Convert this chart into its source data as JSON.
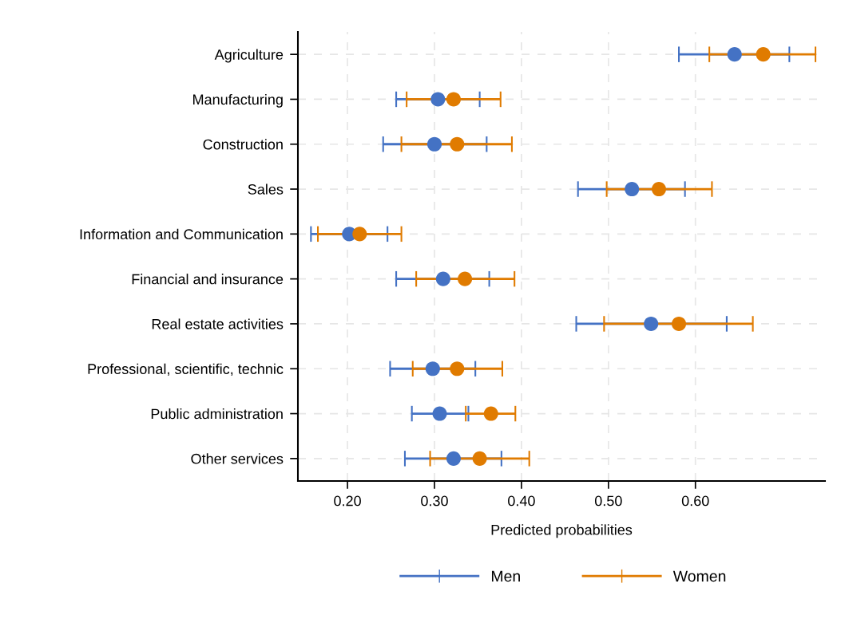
{
  "chart_data": {
    "type": "scatter",
    "orientation": "horizontal",
    "xlabel": "Predicted probabilities",
    "categories": [
      "Agriculture",
      "Manufacturing",
      "Construction",
      "Sales",
      "Information and Communication",
      "Financial and insurance",
      "Real estate activities",
      "Professional, scientific, technic",
      "Public administration",
      "Other services"
    ],
    "series": [
      {
        "name": "Men",
        "color": "#4472c4",
        "values": [
          0.645,
          0.304,
          0.3,
          0.527,
          0.202,
          0.31,
          0.549,
          0.298,
          0.306,
          0.322
        ],
        "errors": [
          [
            0.581,
            0.708
          ],
          [
            0.256,
            0.352
          ],
          [
            0.241,
            0.36
          ],
          [
            0.465,
            0.588
          ],
          [
            0.158,
            0.246
          ],
          [
            0.256,
            0.363
          ],
          [
            0.463,
            0.636
          ],
          [
            0.249,
            0.347
          ],
          [
            0.274,
            0.339
          ],
          [
            0.266,
            0.377
          ]
        ]
      },
      {
        "name": "Women",
        "color": "#e07b00",
        "values": [
          0.678,
          0.322,
          0.326,
          0.558,
          0.214,
          0.335,
          0.581,
          0.326,
          0.365,
          0.352
        ],
        "errors": [
          [
            0.616,
            0.738
          ],
          [
            0.268,
            0.376
          ],
          [
            0.262,
            0.389
          ],
          [
            0.498,
            0.619
          ],
          [
            0.166,
            0.262
          ],
          [
            0.279,
            0.392
          ],
          [
            0.495,
            0.666
          ],
          [
            0.275,
            0.378
          ],
          [
            0.336,
            0.393
          ],
          [
            0.295,
            0.409
          ]
        ]
      }
    ],
    "xlim": [
      0.143,
      0.749
    ],
    "xticks": [
      {
        "value": 0.2,
        "label": "0.20"
      },
      {
        "value": 0.3,
        "label": "0.30"
      },
      {
        "value": 0.4,
        "label": "0.40"
      },
      {
        "value": 0.5,
        "label": "0.50"
      },
      {
        "value": 0.6,
        "label": "0.60"
      }
    ],
    "grid": true,
    "line_style": "dashed",
    "marker": "circle",
    "legend": "bottom"
  }
}
